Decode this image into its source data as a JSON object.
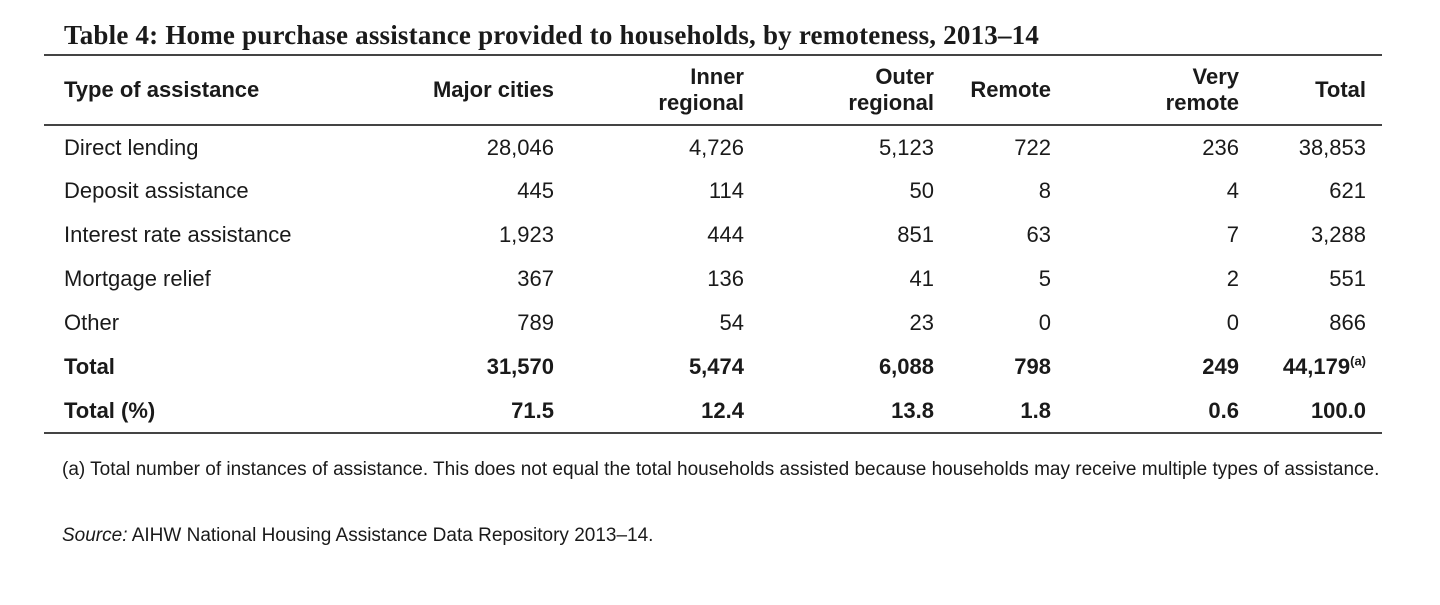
{
  "title": "Table 4: Home purchase assistance provided to households, by remoteness, 2013–14",
  "columns": {
    "type": "Type of assistance",
    "major": "Major cities",
    "inner_1": "Inner",
    "inner_2": "regional",
    "outer_1": "Outer",
    "outer_2": "regional",
    "remote": "Remote",
    "very_1": "Very",
    "very_2": "remote",
    "total": "Total"
  },
  "rows": [
    {
      "label": "Direct lending",
      "major": "28,046",
      "inner": "4,726",
      "outer": "5,123",
      "remote": "722",
      "very": "236",
      "total": "38,853"
    },
    {
      "label": "Deposit assistance",
      "major": "445",
      "inner": "114",
      "outer": "50",
      "remote": "8",
      "very": "4",
      "total": "621"
    },
    {
      "label": "Interest rate assistance",
      "major": "1,923",
      "inner": "444",
      "outer": "851",
      "remote": "63",
      "very": "7",
      "total": "3,288"
    },
    {
      "label": "Mortgage relief",
      "major": "367",
      "inner": "136",
      "outer": "41",
      "remote": "5",
      "very": "2",
      "total": "551"
    },
    {
      "label": "Other",
      "major": "789",
      "inner": "54",
      "outer": "23",
      "remote": "0",
      "very": "0",
      "total": "866"
    },
    {
      "label": "Total",
      "major": "31,570",
      "inner": "5,474",
      "outer": "6,088",
      "remote": "798",
      "very": "249",
      "total": "44,179",
      "total_note": "(a)"
    },
    {
      "label": "Total (%)",
      "major": "71.5",
      "inner": "12.4",
      "outer": "13.8",
      "remote": "1.8",
      "very": "0.6",
      "total": "100.0"
    }
  ],
  "footnote": "(a) Total number of instances of assistance. This does not equal the total households assisted because households may receive multiple types of assistance.",
  "source_label": "Source:",
  "source_text": " AIHW National Housing Assistance Data Repository 2013–14."
}
